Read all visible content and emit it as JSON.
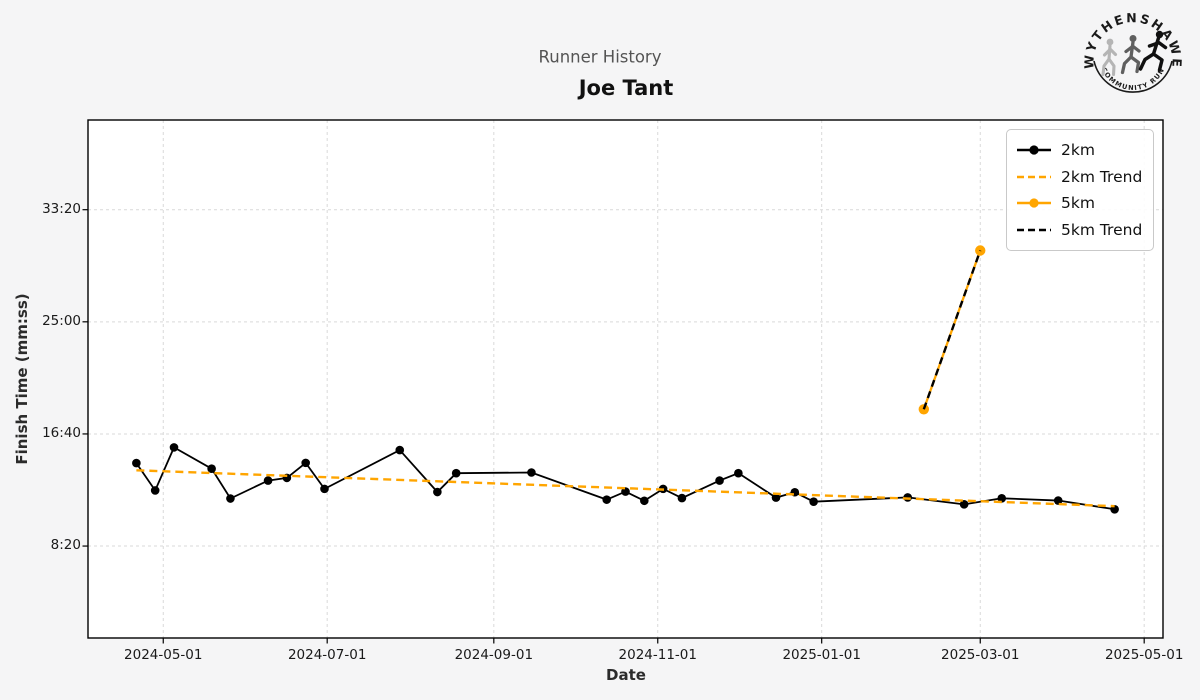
{
  "header": {
    "suptitle": "Runner History",
    "title": "Joe Tant"
  },
  "logo": {
    "top_text": "WYTHENSHAWE",
    "bottom_text": "COMMUNITY RUN",
    "runner_colors": [
      "#b5b5b5",
      "#5f5f5f",
      "#101010"
    ]
  },
  "colors": {
    "accent_orange": "#ffa500",
    "series_black": "#000000",
    "grid": "#d9d9d9"
  },
  "legend": [
    {
      "label": "2km",
      "color": "#000000",
      "style": "line-marker"
    },
    {
      "label": "2km Trend",
      "color": "#ffa500",
      "style": "dashed"
    },
    {
      "label": "5km",
      "color": "#ffa500",
      "style": "line-marker"
    },
    {
      "label": "5km Trend",
      "color": "#000000",
      "style": "dashed"
    }
  ],
  "chart_data": {
    "type": "line",
    "title": "Joe Tant",
    "subtitle": "Runner History",
    "xlabel": "Date",
    "ylabel": "Finish Time (mm:ss)",
    "grid": true,
    "legend_position": "upper right",
    "x_ticks": [
      "2024-05-01",
      "2024-07-01",
      "2024-09-01",
      "2024-11-01",
      "2025-01-01",
      "2025-03-01",
      "2025-05-01"
    ],
    "y_ticks": [
      {
        "label": "8:20",
        "seconds": 500
      },
      {
        "label": "16:40",
        "seconds": 1000
      },
      {
        "label": "25:00",
        "seconds": 1500
      },
      {
        "label": "33:20",
        "seconds": 2000
      }
    ],
    "xlim": [
      "2024-04-03",
      "2025-05-08"
    ],
    "ylim_seconds": [
      90,
      2400
    ],
    "series": [
      {
        "name": "2km",
        "color": "#000000",
        "line": "solid",
        "markers": true,
        "points": [
          {
            "date": "2024-04-21",
            "time": "14:30"
          },
          {
            "date": "2024-04-28",
            "time": "12:28"
          },
          {
            "date": "2024-05-05",
            "time": "15:40"
          },
          {
            "date": "2024-05-19",
            "time": "14:05"
          },
          {
            "date": "2024-05-26",
            "time": "11:52"
          },
          {
            "date": "2024-06-09",
            "time": "13:12"
          },
          {
            "date": "2024-06-16",
            "time": "13:24"
          },
          {
            "date": "2024-06-23",
            "time": "14:31"
          },
          {
            "date": "2024-06-30",
            "time": "12:35"
          },
          {
            "date": "2024-07-28",
            "time": "15:28"
          },
          {
            "date": "2024-08-11",
            "time": "12:21"
          },
          {
            "date": "2024-08-18",
            "time": "13:45"
          },
          {
            "date": "2024-09-15",
            "time": "13:48"
          },
          {
            "date": "2024-10-13",
            "time": "11:47"
          },
          {
            "date": "2024-10-20",
            "time": "12:23"
          },
          {
            "date": "2024-10-27",
            "time": "11:42"
          },
          {
            "date": "2024-11-03",
            "time": "12:35"
          },
          {
            "date": "2024-11-10",
            "time": "11:54"
          },
          {
            "date": "2024-11-24",
            "time": "13:12"
          },
          {
            "date": "2024-12-01",
            "time": "13:45"
          },
          {
            "date": "2024-12-15",
            "time": "11:56"
          },
          {
            "date": "2024-12-22",
            "time": "12:20"
          },
          {
            "date": "2024-12-29",
            "time": "11:38"
          },
          {
            "date": "2025-02-02",
            "time": "11:57"
          },
          {
            "date": "2025-02-23",
            "time": "11:26"
          },
          {
            "date": "2025-03-09",
            "time": "11:53"
          },
          {
            "date": "2025-03-30",
            "time": "11:43"
          },
          {
            "date": "2025-04-20",
            "time": "11:04"
          }
        ]
      },
      {
        "name": "2km Trend",
        "color": "#ffa500",
        "line": "dashed",
        "markers": false,
        "points": [
          {
            "date": "2024-04-21",
            "time": "13:58"
          },
          {
            "date": "2025-04-20",
            "time": "11:18"
          }
        ]
      },
      {
        "name": "5km",
        "color": "#ffa500",
        "line": "solid",
        "markers": true,
        "points": [
          {
            "date": "2025-02-08",
            "time": "18:30"
          },
          {
            "date": "2025-03-01",
            "time": "30:18"
          }
        ]
      },
      {
        "name": "5km Trend",
        "color": "#000000",
        "line": "dashed",
        "markers": false,
        "points": [
          {
            "date": "2025-02-08",
            "time": "18:30"
          },
          {
            "date": "2025-03-01",
            "time": "30:18"
          }
        ]
      }
    ]
  }
}
